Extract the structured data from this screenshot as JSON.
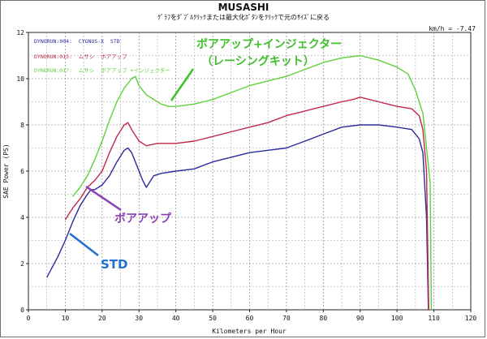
{
  "header": {
    "title": "MUSASHI",
    "subtitle": "ｸﾞﾗﾌをﾀﾞﾌﾞﾙｸﾘｯｸまたは最大化ﾎﾞﾀﾝをｸﾘｯｸで元のｻｲｽﾞに戻る",
    "speed_readout": "km/h = -7.47"
  },
  "legend": [
    {
      "text": "DYNORUN:004:  CYGNUS-X  STD",
      "color": "#2b2b9e"
    },
    {
      "text": "DYNORUN:015:  ムサシ  ボアアップ",
      "color": "#c0284a"
    },
    {
      "text": "DYNORUN:017:  ムサシ  ボアアップ +インジェクター",
      "color": "#5fd23a"
    }
  ],
  "annotations": [
    {
      "text": "ボアアップ+インジェクター",
      "color": "#3fbf2a"
    },
    {
      "text": "（レーシングキット）",
      "color": "#3fbf2a"
    },
    {
      "text": "ボアアップ",
      "color": "#8a3fb5"
    },
    {
      "text": "STD",
      "color": "#1f6fd0"
    }
  ],
  "chart_data": {
    "type": "line",
    "xlabel": "Kilometers per Hour",
    "ylabel": "SAE Power (PS)",
    "xlim": [
      0,
      120
    ],
    "ylim": [
      0,
      12
    ],
    "x_ticks": [
      0,
      10,
      20,
      30,
      40,
      50,
      60,
      70,
      80,
      90,
      100,
      110,
      120
    ],
    "y_ticks": [
      0,
      2,
      4,
      6,
      8,
      10,
      12
    ],
    "grid": true,
    "legend_position": "top-left",
    "series": [
      {
        "name": "DYNORUN:004:  CYGNUS-X  STD",
        "color": "#2b2b9e",
        "points": [
          [
            5,
            1.4
          ],
          [
            8,
            2.3
          ],
          [
            10,
            3.0
          ],
          [
            12,
            3.8
          ],
          [
            14,
            4.5
          ],
          [
            16,
            5.0
          ],
          [
            17,
            5.2
          ],
          [
            18,
            5.2
          ],
          [
            20,
            5.4
          ],
          [
            22,
            5.8
          ],
          [
            24,
            6.4
          ],
          [
            26,
            6.9
          ],
          [
            27,
            7.0
          ],
          [
            28,
            6.8
          ],
          [
            30,
            6.0
          ],
          [
            31,
            5.6
          ],
          [
            32,
            5.3
          ],
          [
            34,
            5.8
          ],
          [
            36,
            5.9
          ],
          [
            40,
            6.0
          ],
          [
            45,
            6.1
          ],
          [
            50,
            6.4
          ],
          [
            55,
            6.6
          ],
          [
            60,
            6.8
          ],
          [
            65,
            6.9
          ],
          [
            70,
            7.0
          ],
          [
            75,
            7.3
          ],
          [
            80,
            7.6
          ],
          [
            85,
            7.9
          ],
          [
            90,
            8.0
          ],
          [
            95,
            8.0
          ],
          [
            100,
            7.9
          ],
          [
            104,
            7.8
          ],
          [
            106,
            7.4
          ],
          [
            107,
            6.8
          ],
          [
            108,
            4.0
          ],
          [
            108.5,
            0
          ]
        ]
      },
      {
        "name": "DYNORUN:015:  ムサシ  ボアアップ",
        "color": "#c0284a",
        "points": [
          [
            10,
            3.9
          ],
          [
            12,
            4.4
          ],
          [
            14,
            4.8
          ],
          [
            16,
            5.3
          ],
          [
            18,
            5.6
          ],
          [
            20,
            6.0
          ],
          [
            22,
            6.8
          ],
          [
            24,
            7.5
          ],
          [
            26,
            8.0
          ],
          [
            27,
            8.1
          ],
          [
            28,
            7.8
          ],
          [
            30,
            7.3
          ],
          [
            32,
            7.1
          ],
          [
            35,
            7.2
          ],
          [
            40,
            7.2
          ],
          [
            45,
            7.3
          ],
          [
            50,
            7.5
          ],
          [
            55,
            7.7
          ],
          [
            60,
            7.9
          ],
          [
            65,
            8.1
          ],
          [
            70,
            8.4
          ],
          [
            75,
            8.6
          ],
          [
            80,
            8.8
          ],
          [
            85,
            9.0
          ],
          [
            88,
            9.1
          ],
          [
            90,
            9.2
          ],
          [
            95,
            9.0
          ],
          [
            100,
            8.8
          ],
          [
            104,
            8.7
          ],
          [
            106,
            8.4
          ],
          [
            107,
            7.8
          ],
          [
            108,
            6.0
          ],
          [
            108.6,
            0
          ]
        ]
      },
      {
        "name": "DYNORUN:017:  ムサシ  ボアアップ +インジェクター",
        "color": "#5fd23a",
        "points": [
          [
            12,
            4.9
          ],
          [
            14,
            5.3
          ],
          [
            16,
            5.8
          ],
          [
            18,
            6.5
          ],
          [
            20,
            7.3
          ],
          [
            22,
            8.2
          ],
          [
            24,
            9.0
          ],
          [
            26,
            9.6
          ],
          [
            28,
            10.0
          ],
          [
            29,
            10.1
          ],
          [
            30,
            9.7
          ],
          [
            32,
            9.3
          ],
          [
            34,
            9.1
          ],
          [
            36,
            8.9
          ],
          [
            38,
            8.8
          ],
          [
            40,
            8.8
          ],
          [
            45,
            8.9
          ],
          [
            50,
            9.1
          ],
          [
            55,
            9.4
          ],
          [
            60,
            9.7
          ],
          [
            65,
            9.9
          ],
          [
            70,
            10.1
          ],
          [
            75,
            10.4
          ],
          [
            80,
            10.7
          ],
          [
            85,
            10.9
          ],
          [
            90,
            11.0
          ],
          [
            95,
            10.8
          ],
          [
            100,
            10.5
          ],
          [
            103,
            10.2
          ],
          [
            105,
            9.5
          ],
          [
            107,
            8.5
          ],
          [
            108,
            7.0
          ],
          [
            109,
            5.5
          ],
          [
            109.3,
            0
          ]
        ]
      }
    ]
  }
}
